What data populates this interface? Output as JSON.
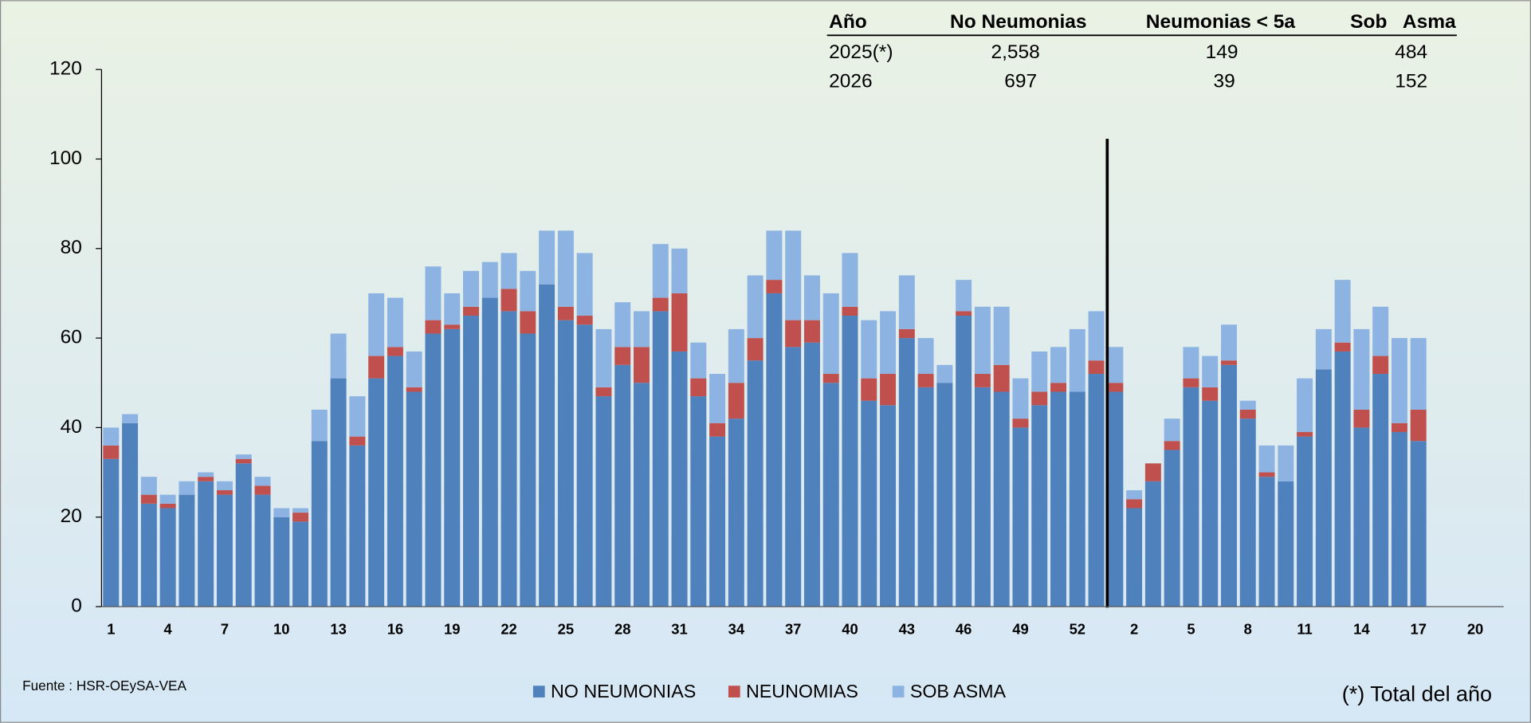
{
  "chart_data": {
    "type": "stacked_bar",
    "categories": [
      1,
      null,
      null,
      4,
      null,
      null,
      7,
      null,
      null,
      10,
      null,
      null,
      13,
      null,
      null,
      16,
      null,
      null,
      19,
      null,
      null,
      22,
      null,
      null,
      25,
      null,
      null,
      28,
      null,
      null,
      31,
      null,
      null,
      34,
      null,
      null,
      37,
      null,
      null,
      40,
      null,
      null,
      43,
      null,
      null,
      46,
      null,
      null,
      49,
      null,
      null,
      52,
      null,
      null,
      2,
      null,
      null,
      5,
      null,
      null,
      8,
      null,
      null,
      11,
      null,
      null,
      14,
      null,
      null,
      17,
      null,
      null,
      20,
      null
    ],
    "series": [
      {
        "name": "NO NEUMONIAS",
        "color": "#4f81bd",
        "values": [
          33,
          41,
          23,
          22,
          25,
          28,
          25,
          32,
          25,
          20,
          19,
          37,
          51,
          36,
          51,
          56,
          48,
          61,
          62,
          65,
          69,
          66,
          61,
          72,
          64,
          63,
          47,
          54,
          50,
          66,
          57,
          47,
          38,
          42,
          55,
          70,
          58,
          59,
          50,
          65,
          46,
          45,
          60,
          49,
          50,
          65,
          49,
          48,
          40,
          45,
          48,
          48,
          52,
          48,
          22,
          28,
          35,
          49,
          46,
          54,
          42,
          29,
          28,
          38,
          53,
          57,
          40,
          52,
          39,
          37,
          null,
          null,
          null,
          null
        ]
      },
      {
        "name": "NEUNOMIAS",
        "color": "#c0504d",
        "values": [
          3,
          0,
          2,
          1,
          0,
          1,
          1,
          1,
          2,
          0,
          2,
          0,
          0,
          2,
          5,
          2,
          1,
          3,
          1,
          2,
          0,
          5,
          5,
          0,
          3,
          2,
          2,
          4,
          8,
          3,
          13,
          4,
          3,
          8,
          5,
          3,
          6,
          5,
          2,
          2,
          5,
          7,
          2,
          3,
          0,
          1,
          3,
          6,
          2,
          3,
          2,
          0,
          3,
          2,
          2,
          4,
          2,
          2,
          3,
          1,
          2,
          1,
          0,
          1,
          0,
          2,
          4,
          4,
          2,
          7,
          null,
          null,
          null,
          null
        ]
      },
      {
        "name": "SOB ASMA",
        "color": "#8db3e2",
        "values": [
          4,
          2,
          4,
          2,
          3,
          1,
          2,
          1,
          2,
          2,
          1,
          7,
          10,
          9,
          14,
          11,
          8,
          12,
          7,
          8,
          8,
          8,
          9,
          12,
          17,
          14,
          13,
          10,
          8,
          12,
          10,
          8,
          11,
          12,
          14,
          11,
          20,
          10,
          18,
          12,
          13,
          14,
          12,
          8,
          4,
          7,
          15,
          13,
          9,
          9,
          8,
          14,
          11,
          8,
          2,
          0,
          5,
          7,
          7,
          8,
          2,
          6,
          8,
          12,
          9,
          14,
          18,
          11,
          19,
          16,
          null,
          null,
          null,
          null
        ]
      }
    ],
    "ylim": [
      0,
      120
    ],
    "yticks": [
      0,
      20,
      40,
      60,
      80,
      100,
      120
    ],
    "legend": "bottom",
    "source": "Fuente : HSR-OEySA-VEA",
    "note": "(*) Total del año"
  },
  "table": {
    "header": [
      "Año",
      "No Neumonias",
      "Neumonias < 5a",
      "Sob   Asma"
    ],
    "rows": [
      [
        "2025(*)",
        "2,558",
        "149",
        "484"
      ],
      [
        "2026",
        "697",
        "39",
        "152"
      ]
    ]
  }
}
